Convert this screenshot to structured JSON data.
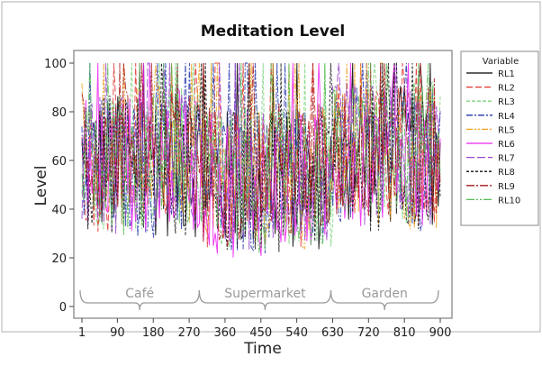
{
  "chart_data": {
    "type": "line",
    "title": "Meditation Level",
    "xlabel": "Time",
    "ylabel": "Level",
    "xlim": [
      1,
      900
    ],
    "ylim": [
      0,
      100
    ],
    "x_ticks": [
      1,
      90,
      180,
      270,
      360,
      450,
      540,
      630,
      720,
      810,
      900
    ],
    "y_ticks": [
      0,
      20,
      40,
      60,
      80,
      100
    ],
    "legend_title": "Variable",
    "legend_position": "right",
    "regions": [
      {
        "label": "Café",
        "x_start": 1,
        "x_end": 300
      },
      {
        "label": "Supermarket",
        "x_start": 300,
        "x_end": 630
      },
      {
        "label": "Garden",
        "x_start": 630,
        "x_end": 900
      }
    ],
    "series": [
      {
        "name": "RL1",
        "color": "#000000",
        "dash": "",
        "segment_means": [
          58,
          52,
          62
        ]
      },
      {
        "name": "RL2",
        "color": "#e0302a",
        "dash": "7,3",
        "segment_means": [
          60,
          54,
          63
        ]
      },
      {
        "name": "RL3",
        "color": "#7fd37f",
        "dash": "4,2",
        "segment_means": [
          61,
          53,
          64
        ]
      },
      {
        "name": "RL4",
        "color": "#2233aa",
        "dash": "7,2,2,2",
        "segment_means": [
          57,
          51,
          60
        ]
      },
      {
        "name": "RL5",
        "color": "#f0a020",
        "dash": "7,2,2,2,2,2",
        "segment_means": [
          62,
          52,
          61
        ]
      },
      {
        "name": "RL6",
        "color": "#ee22ee",
        "dash": "",
        "segment_means": [
          60,
          50,
          63
        ]
      },
      {
        "name": "RL7",
        "color": "#9944cc",
        "dash": "9,3",
        "segment_means": [
          59,
          53,
          62
        ]
      },
      {
        "name": "RL8",
        "color": "#111111",
        "dash": "3,2",
        "segment_means": [
          58,
          52,
          60
        ]
      },
      {
        "name": "RL9",
        "color": "#a81818",
        "dash": "9,2,2,2",
        "segment_means": [
          61,
          55,
          64
        ]
      },
      {
        "name": "RL10",
        "color": "#55bb55",
        "dash": "9,2,2,2,2,2",
        "segment_means": [
          59,
          52,
          62
        ]
      }
    ]
  }
}
